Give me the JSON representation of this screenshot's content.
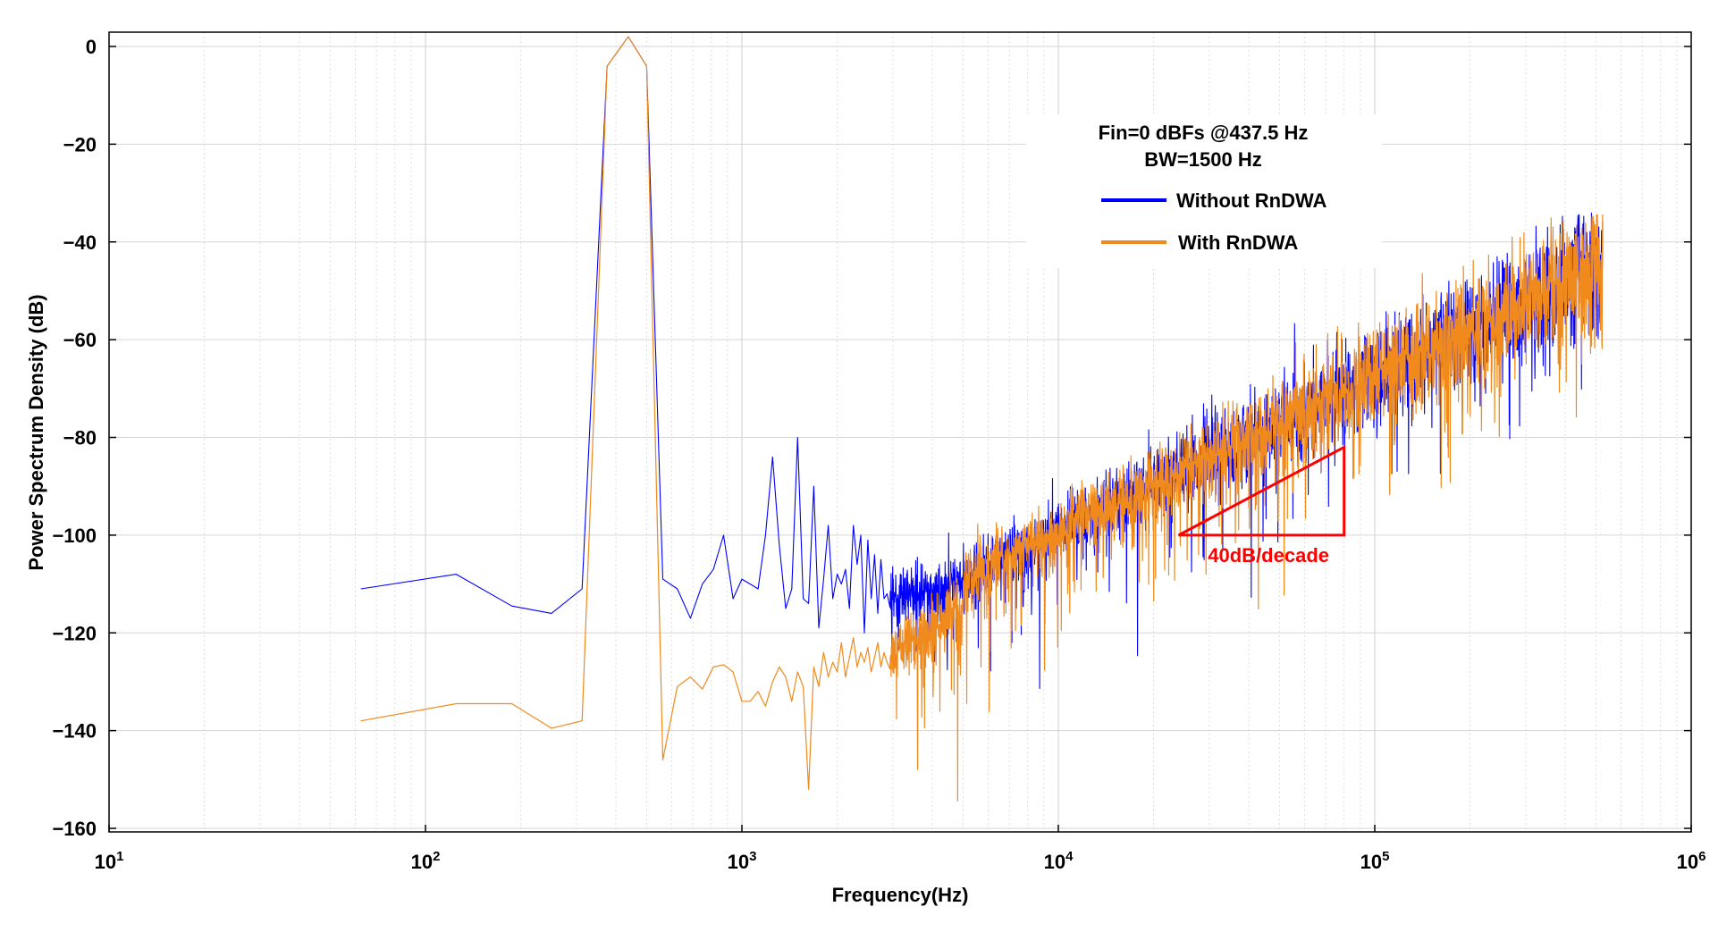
{
  "chart_data": {
    "type": "line",
    "title": "",
    "xlabel": "Frequency(Hz)",
    "ylabel": "Power Spectrum Density  (dB)",
    "x_scale": "log",
    "xlim": [
      10,
      1000000
    ],
    "ylim": [
      -160,
      2
    ],
    "x_tick_labels": [
      {
        "base": "10",
        "exp": "1"
      },
      {
        "base": "10",
        "exp": "2"
      },
      {
        "base": "10",
        "exp": "3"
      },
      {
        "base": "10",
        "exp": "4"
      },
      {
        "base": "10",
        "exp": "5"
      },
      {
        "base": "10",
        "exp": "6"
      }
    ],
    "y_ticks": [
      0,
      -20,
      -40,
      -60,
      -80,
      -100,
      -120,
      -140,
      -160
    ],
    "y_tick_labels": [
      "0",
      "−20",
      "−40",
      "−60",
      "−80",
      "−100",
      "−120",
      "−140",
      "−160"
    ],
    "grid": true,
    "legend": {
      "placement": "top-right",
      "header": [
        "Fin=0 dBFs @437.5 Hz",
        "BW=1500 Hz"
      ],
      "entries": [
        "Without RnDWA",
        "With RnDWA"
      ]
    },
    "colors": {
      "without": "#0000ff",
      "with": "#f08a1c",
      "annotation": "#ff0000"
    },
    "series": [
      {
        "name": "Without RnDWA",
        "x": [
          62.5,
          125,
          187.5,
          250,
          312.5,
          375,
          437.5,
          500,
          562.5,
          625,
          687.5,
          750,
          812.5,
          875,
          937.5,
          1000,
          1062.5,
          1125,
          1187.5,
          1250,
          1312.5,
          1375,
          1437.5,
          1500,
          1562.5,
          1625,
          1687.5,
          1750,
          1812.5,
          1875,
          1937.5,
          2000,
          2062.5,
          2125,
          2187.5,
          2250,
          2312.5,
          2375,
          2437.5,
          2500,
          2562.5,
          2625,
          2687.5,
          2750,
          2812.5,
          2875
        ],
        "y": [
          -111,
          -108,
          -114.5,
          -116,
          -111,
          -4,
          2,
          -4,
          -109,
          -111,
          -117,
          -110,
          -107,
          -100,
          -113,
          -109,
          -110,
          -111,
          -100,
          -84,
          -102,
          -115,
          -111,
          -80,
          -113,
          -114,
          -90,
          -119,
          -109,
          -98,
          -113,
          -108,
          -110,
          -107,
          -115,
          -98,
          -106,
          -100,
          -120,
          -101,
          -113,
          -104,
          -116,
          -105,
          -113,
          -112
        ]
      },
      {
        "name": "With RnDWA",
        "x": [
          62.5,
          125,
          187.5,
          250,
          312.5,
          375,
          437.5,
          500,
          562.5,
          625,
          687.5,
          750,
          812.5,
          875,
          937.5,
          1000,
          1062.5,
          1125,
          1187.5,
          1250,
          1312.5,
          1375,
          1437.5,
          1500,
          1562.5,
          1625,
          1687.5,
          1750,
          1812.5,
          1875,
          1937.5,
          2000,
          2062.5,
          2125,
          2187.5,
          2250,
          2312.5,
          2375,
          2437.5,
          2500,
          2562.5,
          2625,
          2687.5,
          2750,
          2812.5,
          2875
        ],
        "y": [
          -138,
          -134.5,
          -134.5,
          -139.5,
          -138,
          -4,
          2,
          -4,
          -146,
          -131,
          -129,
          -131.5,
          -127,
          -126.5,
          -128,
          -134,
          -134,
          -132,
          -135,
          -130,
          -127,
          -129,
          -134,
          -128,
          -131,
          -152,
          -127,
          -131,
          -124,
          -129,
          -126,
          -128,
          -122,
          -129,
          -125,
          -121,
          -127,
          -124,
          -126,
          -123,
          -128,
          -125,
          -122,
          -127,
          -124,
          -126
        ]
      }
    ],
    "noise_floor_note": "Noise continues from ~3 kHz to ~500 kHz for both series, rising ~40 dB/decade from about -112 dB to about -50 dB",
    "annotations": [
      {
        "text": "40dB/decade",
        "type": "slope-triangle",
        "x_range": [
          24000,
          80000
        ],
        "y_range": [
          -100,
          -82
        ],
        "color": "#ff0000"
      }
    ]
  }
}
